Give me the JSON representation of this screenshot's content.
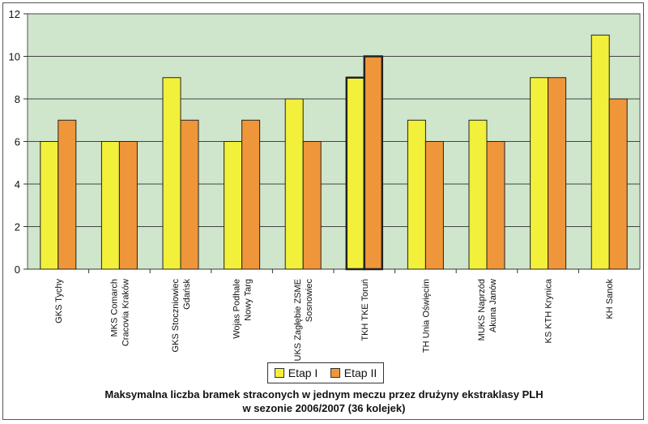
{
  "chart_data": {
    "type": "bar",
    "categories": [
      [
        "GKS Tychy"
      ],
      [
        "MKS Comarch",
        "Cracovia Kraków"
      ],
      [
        "GKS Stoczniowiec",
        "Gdańsk"
      ],
      [
        "Wojas Podhale",
        "Nowy Targ"
      ],
      [
        "UKS Zagłębie ZSME",
        "Sosnowiec"
      ],
      [
        "TKH TKE Toruń"
      ],
      [
        "TH Unia Oświęcim"
      ],
      [
        "MUKS Naprzód",
        "Akuna Janów"
      ],
      [
        "KS KTH Krynica"
      ],
      [
        "KH Sanok"
      ]
    ],
    "series": [
      {
        "name": "Etap I",
        "values": [
          6,
          6,
          9,
          6,
          8,
          9,
          7,
          7,
          9,
          11
        ],
        "color": "#f2f03a"
      },
      {
        "name": "Etap II",
        "values": [
          7,
          6,
          7,
          7,
          6,
          10,
          6,
          6,
          9,
          8
        ],
        "color": "#f0963a"
      }
    ],
    "highlight_category_index": 5,
    "ylim": [
      0,
      12
    ],
    "yticks": [
      0,
      2,
      4,
      6,
      8,
      10,
      12
    ],
    "grid": true,
    "plot_background": "#cfe6cc",
    "legend_position": "bottom",
    "xlabel": "",
    "ylabel": "",
    "title": [
      "Maksymalna liczba bramek straconych w jednym meczu przez drużyny ekstraklasy PLH",
      "w sezonie 2006/2007 (36 kolejek)"
    ]
  }
}
